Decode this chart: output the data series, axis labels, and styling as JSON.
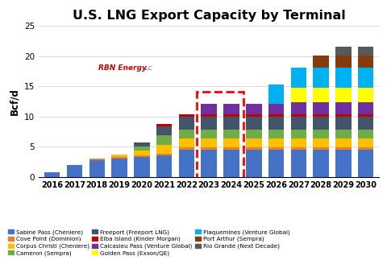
{
  "title": "U.S. LNG Export Capacity by Terminal",
  "ylabel": "Bcf/d",
  "years": [
    2016,
    2017,
    2018,
    2019,
    2020,
    2021,
    2022,
    2023,
    2024,
    2025,
    2026,
    2027,
    2028,
    2029,
    2030
  ],
  "series": [
    {
      "label": "Sabine Pass (Cheniere)",
      "color": "#4472C4",
      "values": [
        0.75,
        2.0,
        2.75,
        3.0,
        3.25,
        3.5,
        4.5,
        4.5,
        4.5,
        4.5,
        4.5,
        4.5,
        4.5,
        4.5,
        4.5
      ]
    },
    {
      "label": "Cove Point (Dominion)",
      "color": "#ED7D31",
      "values": [
        0.0,
        0.0,
        0.25,
        0.35,
        0.35,
        0.35,
        0.35,
        0.35,
        0.35,
        0.35,
        0.35,
        0.35,
        0.35,
        0.35,
        0.35
      ]
    },
    {
      "label": "Corpus Christi (Cheniere)",
      "color": "#FFC000",
      "values": [
        0.0,
        0.0,
        0.0,
        0.3,
        0.75,
        1.5,
        1.5,
        1.5,
        1.5,
        1.5,
        1.5,
        1.5,
        1.5,
        1.5,
        1.5
      ]
    },
    {
      "label": "Cameron (Sempra)",
      "color": "#70AD47",
      "values": [
        0.0,
        0.0,
        0.0,
        0.0,
        0.65,
        1.5,
        1.5,
        1.5,
        1.5,
        1.5,
        1.5,
        1.5,
        1.5,
        1.5,
        1.5
      ]
    },
    {
      "label": "Freeport (Freeport LNG)",
      "color": "#44546A",
      "values": [
        0.0,
        0.0,
        0.0,
        0.0,
        0.75,
        1.5,
        2.1,
        2.1,
        2.1,
        2.1,
        2.1,
        2.1,
        2.1,
        2.1,
        2.1
      ]
    },
    {
      "label": "Elba Island (Kinder Morgan)",
      "color": "#C00000",
      "values": [
        0.0,
        0.0,
        0.0,
        0.0,
        0.0,
        0.35,
        0.35,
        0.35,
        0.35,
        0.35,
        0.35,
        0.35,
        0.35,
        0.35,
        0.35
      ]
    },
    {
      "label": "Calcasieu Pass (Venture Global)",
      "color": "#7030A0",
      "values": [
        0.0,
        0.0,
        0.0,
        0.0,
        0.0,
        0.0,
        0.0,
        1.8,
        1.8,
        1.8,
        1.8,
        2.0,
        2.0,
        2.0,
        2.0
      ]
    },
    {
      "label": "Golden Pass (Exxon/QE)",
      "color": "#FFFF00",
      "values": [
        0.0,
        0.0,
        0.0,
        0.0,
        0.0,
        0.0,
        0.0,
        0.0,
        0.0,
        0.0,
        0.0,
        2.5,
        2.5,
        2.5,
        2.5
      ]
    },
    {
      "label": "Plaquemines (Venture Global)",
      "color": "#00B0F0",
      "values": [
        0.0,
        0.0,
        0.0,
        0.0,
        0.0,
        0.0,
        0.0,
        0.0,
        0.0,
        0.0,
        3.25,
        3.25,
        3.25,
        3.25,
        3.25
      ]
    },
    {
      "label": "Port Arthur (Sempra)",
      "color": "#843C0C",
      "values": [
        0.0,
        0.0,
        0.0,
        0.0,
        0.0,
        0.0,
        0.0,
        0.0,
        0.0,
        0.0,
        0.0,
        0.0,
        2.0,
        2.0,
        2.0
      ]
    },
    {
      "label": "Rio Grande (Next Decade)",
      "color": "#595959",
      "values": [
        0.0,
        0.0,
        0.0,
        0.0,
        0.0,
        0.0,
        0.0,
        0.0,
        0.0,
        0.0,
        0.0,
        0.0,
        0.0,
        1.5,
        1.5
      ]
    }
  ],
  "ylim": [
    0,
    25
  ],
  "yticks": [
    0,
    5,
    10,
    15,
    20,
    25
  ],
  "highlight_years": [
    2023,
    2024
  ],
  "background_color": "#FFFFFF",
  "legend_order": [
    "Sabine Pass (Cheniere)",
    "Cove Point (Dominion)",
    "Corpus Christi (Cheniere)",
    "Cameron (Sempra)",
    "Freeport (Freeport LNG)",
    "Elba Island (Kinder Morgan)",
    "Calcasieu Pass (Venture Global)",
    "Golden Pass (Exxon/QE)",
    "Plaquemines (Venture Global)",
    "Port Arthur (Sempra)",
    "Rio Grande (Next Decade)"
  ]
}
